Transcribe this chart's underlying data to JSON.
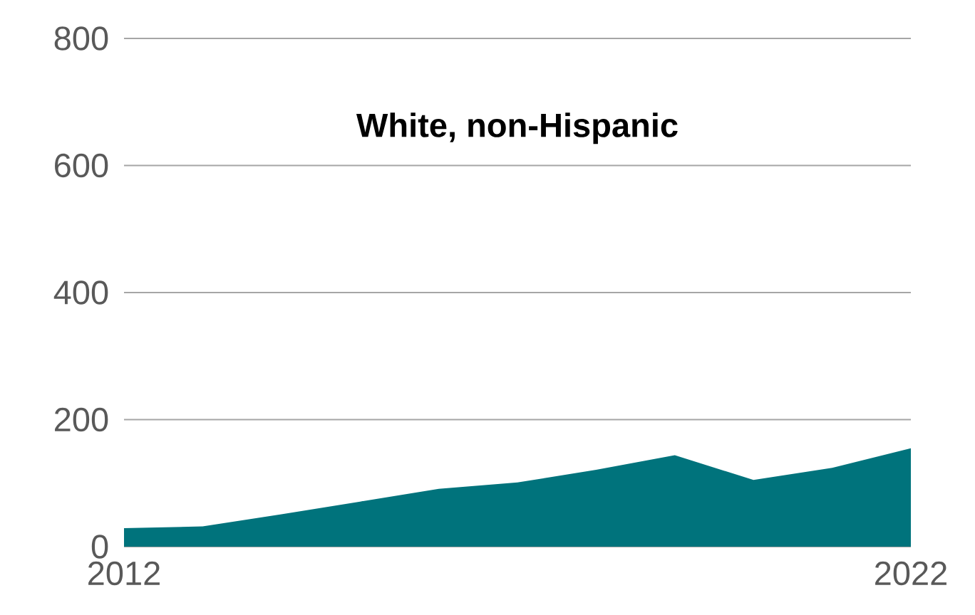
{
  "chart_data": {
    "type": "area",
    "title": "White, non-Hispanic",
    "x": [
      2012,
      2013,
      2014,
      2015,
      2016,
      2017,
      2018,
      2019,
      2020,
      2021,
      2022
    ],
    "series": [
      {
        "color": "#00737c",
        "values": [
          29,
          32,
          51,
          71,
          91,
          101,
          121,
          144,
          105,
          124,
          155
        ]
      }
    ],
    "xlim": [
      2012,
      2022
    ],
    "xticks": [
      2012,
      2022
    ],
    "ylim": [
      0,
      800
    ],
    "yticks": [
      0,
      200,
      400,
      600,
      800
    ],
    "grid": "y"
  }
}
